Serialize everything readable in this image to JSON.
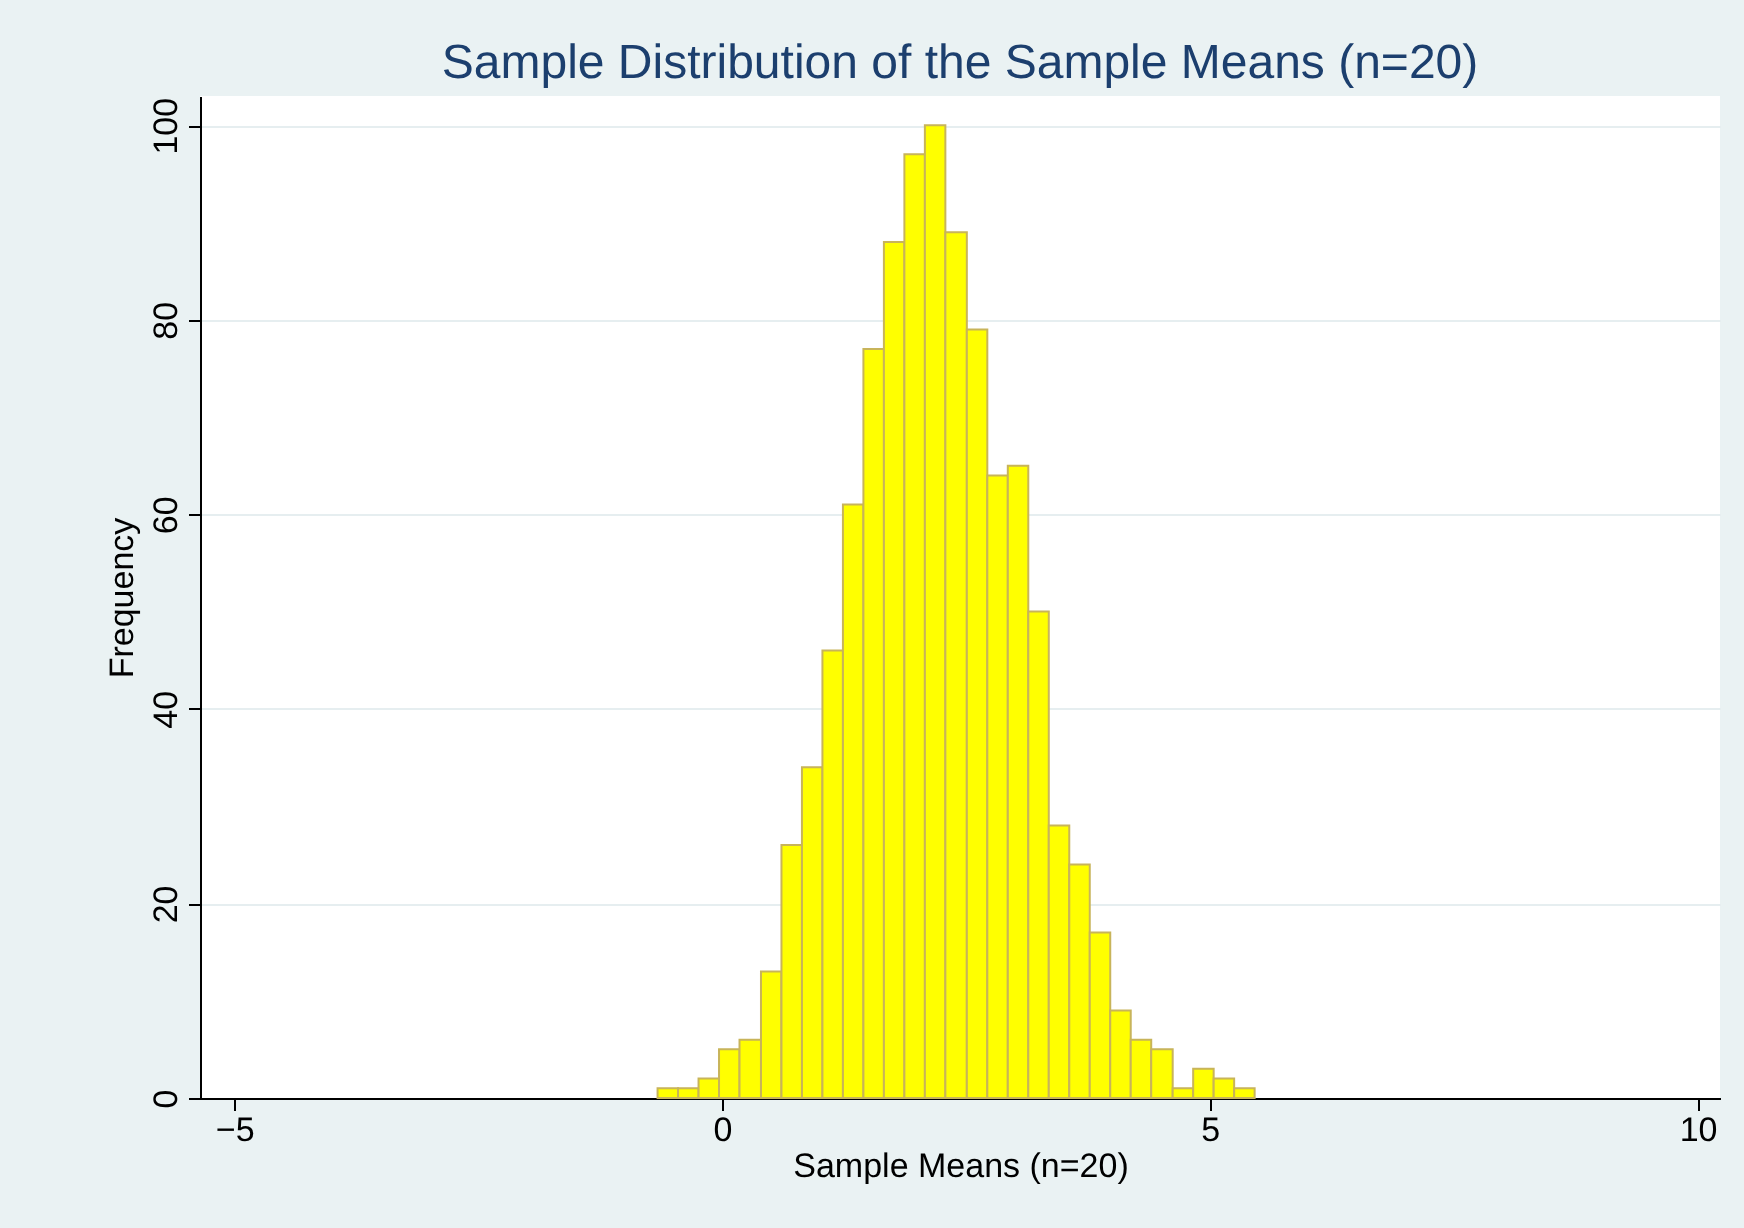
{
  "chart_data": {
    "type": "histogram",
    "title": "Sample Distribution of the Sample Means (n=20)",
    "xlabel": "Sample Means (n=20)",
    "ylabel": "Frequency",
    "bins": [
      -0.66,
      -0.45,
      -0.24,
      -0.03,
      0.18,
      0.4,
      0.61,
      0.82,
      1.03,
      1.24,
      1.45,
      1.66,
      1.87,
      2.08,
      2.29,
      2.51,
      2.72,
      2.93,
      3.14,
      3.35,
      3.56,
      3.77,
      3.98,
      4.19,
      4.4,
      4.62,
      4.83,
      5.04,
      5.25,
      5.46
    ],
    "values": [
      1,
      1,
      2,
      5,
      6,
      13,
      26,
      34,
      46,
      61,
      77,
      88,
      97,
      100,
      89,
      79,
      64,
      65,
      50,
      28,
      24,
      17,
      9,
      6,
      5,
      1,
      3,
      2,
      1
    ],
    "color": "#ffff00",
    "xlim": [
      -5.35,
      10.23
    ],
    "xticks": [
      -5,
      0,
      5,
      10
    ],
    "ylim": [
      0,
      103
    ],
    "yticks": [
      0,
      20,
      40,
      60,
      80,
      100
    ],
    "grid": "y"
  }
}
